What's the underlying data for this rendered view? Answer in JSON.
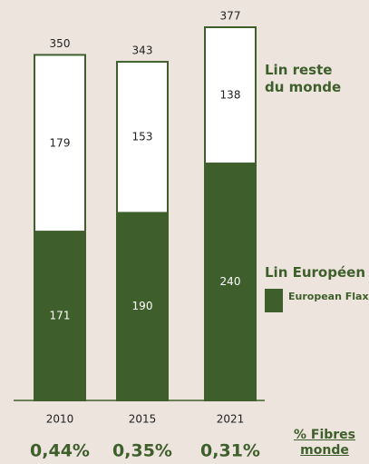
{
  "chart_data": {
    "type": "stacked_bar",
    "categories": [
      "2010",
      "2015",
      "2021"
    ],
    "series": [
      {
        "name": "Lin Européen",
        "color": "#3e5f2b",
        "values": [
          171,
          190,
          240
        ]
      },
      {
        "name": "Lin reste du monde",
        "color": "#ffffff",
        "values": [
          179,
          153,
          138
        ]
      }
    ],
    "totals": [
      350,
      343,
      377
    ],
    "share_title": "% Fibres monde",
    "share_labels": [
      "0,44%",
      "0,35%",
      "0,31%"
    ],
    "logo_text": "European Flax."
  }
}
